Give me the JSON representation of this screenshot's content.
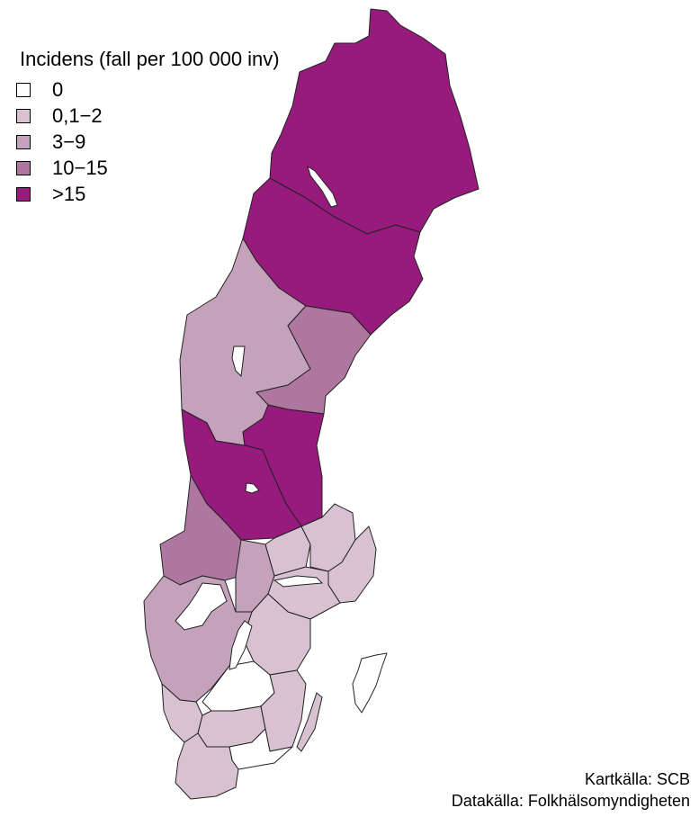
{
  "legend": {
    "title": "Incidens (fall per 100 000 inv)",
    "items": [
      {
        "label": "0",
        "color": "#ffffff"
      },
      {
        "label": "0,1−2",
        "color": "#d8c2d2"
      },
      {
        "label": "3−9",
        "color": "#c4a2bb"
      },
      {
        "label": "10−15",
        "color": "#ad779f"
      },
      {
        "label": ">15",
        "color": "#971a7d"
      }
    ]
  },
  "sources": {
    "map_source": "Kartkälla: SCB",
    "data_source": "Datakälla: Folkhälsomyndigheten"
  }
}
